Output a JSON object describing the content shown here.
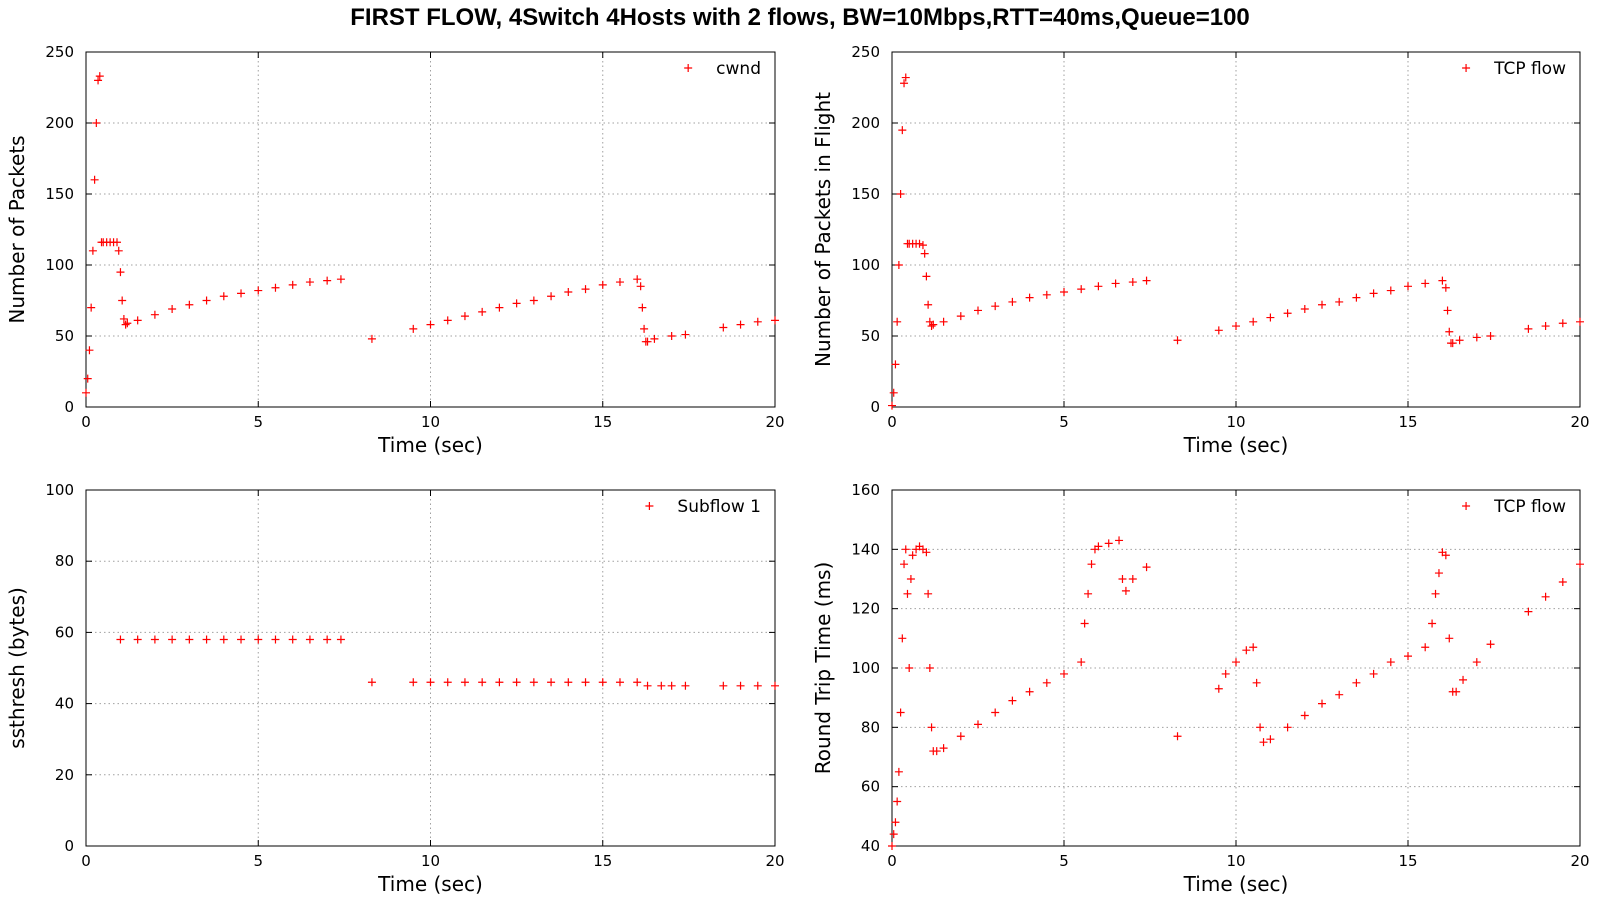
{
  "title": "FIRST FLOW, 4Switch 4Hosts with 2 flows, BW=10Mbps,RTT=40ms,Queue=100",
  "colors": {
    "series": "#ff0000",
    "grid": "#a0a0a0",
    "axis": "#000000"
  },
  "chart_data": [
    {
      "type": "scatter",
      "xlabel": "Time (sec)",
      "ylabel": "Number of Packets",
      "xlim": [
        0,
        20
      ],
      "ylim": [
        0,
        250
      ],
      "xticks": [
        0,
        5,
        10,
        15,
        20
      ],
      "yticks": [
        0,
        50,
        100,
        150,
        200,
        250
      ],
      "grid": true,
      "legend_position": "top-right",
      "series": [
        {
          "name": "cwnd",
          "marker": "+",
          "x": [
            0.0,
            0.05,
            0.1,
            0.15,
            0.2,
            0.25,
            0.3,
            0.35,
            0.4,
            0.45,
            0.5,
            0.6,
            0.7,
            0.8,
            0.9,
            0.95,
            1.0,
            1.05,
            1.1,
            1.15,
            1.2,
            1.5,
            2.0,
            2.5,
            3.0,
            3.5,
            4.0,
            4.5,
            5.0,
            5.5,
            6.0,
            6.5,
            7.0,
            7.4,
            8.3,
            9.5,
            10.0,
            10.5,
            11.0,
            11.5,
            12.0,
            12.5,
            13.0,
            13.5,
            14.0,
            14.5,
            15.0,
            15.5,
            16.0,
            16.1,
            16.15,
            16.2,
            16.25,
            16.3,
            16.5,
            17.0,
            17.4,
            18.5,
            19.0,
            19.5,
            20.0
          ],
          "y": [
            10,
            20,
            40,
            70,
            110,
            160,
            200,
            230,
            233,
            116,
            116,
            116,
            116,
            116,
            116,
            110,
            95,
            75,
            62,
            58,
            59,
            61,
            65,
            69,
            72,
            75,
            78,
            80,
            82,
            84,
            86,
            88,
            89,
            90,
            48,
            55,
            58,
            61,
            64,
            67,
            70,
            73,
            75,
            78,
            81,
            83,
            86,
            88,
            90,
            85,
            70,
            55,
            46,
            46,
            48,
            50,
            51,
            56,
            58,
            60,
            61
          ]
        }
      ]
    },
    {
      "type": "scatter",
      "xlabel": "Time (sec)",
      "ylabel": "Number of Packets in Flight",
      "xlim": [
        0,
        20
      ],
      "ylim": [
        0,
        250
      ],
      "xticks": [
        0,
        5,
        10,
        15,
        20
      ],
      "yticks": [
        0,
        50,
        100,
        150,
        200,
        250
      ],
      "grid": true,
      "legend_position": "top-right",
      "series": [
        {
          "name": "TCP flow",
          "marker": "+",
          "x": [
            0.0,
            0.05,
            0.1,
            0.15,
            0.2,
            0.25,
            0.3,
            0.35,
            0.4,
            0.45,
            0.5,
            0.6,
            0.7,
            0.8,
            0.9,
            0.95,
            1.0,
            1.05,
            1.1,
            1.15,
            1.2,
            1.5,
            2.0,
            2.5,
            3.0,
            3.5,
            4.0,
            4.5,
            5.0,
            5.5,
            6.0,
            6.5,
            7.0,
            7.4,
            8.3,
            9.5,
            10.0,
            10.5,
            11.0,
            11.5,
            12.0,
            12.5,
            13.0,
            13.5,
            14.0,
            14.5,
            15.0,
            15.5,
            16.0,
            16.1,
            16.15,
            16.2,
            16.25,
            16.3,
            16.5,
            17.0,
            17.4,
            18.5,
            19.0,
            19.5,
            20.0
          ],
          "y": [
            1,
            10,
            30,
            60,
            100,
            150,
            195,
            228,
            232,
            115,
            115,
            115,
            115,
            115,
            114,
            108,
            92,
            72,
            60,
            57,
            58,
            60,
            64,
            68,
            71,
            74,
            77,
            79,
            81,
            83,
            85,
            87,
            88,
            89,
            47,
            54,
            57,
            60,
            63,
            66,
            69,
            72,
            74,
            77,
            80,
            82,
            85,
            87,
            89,
            84,
            68,
            53,
            45,
            45,
            47,
            49,
            50,
            55,
            57,
            59,
            60
          ]
        }
      ]
    },
    {
      "type": "scatter",
      "xlabel": "Time (sec)",
      "ylabel": "ssthresh (bytes)",
      "xlim": [
        0,
        20
      ],
      "ylim": [
        0,
        100
      ],
      "xticks": [
        0,
        5,
        10,
        15,
        20
      ],
      "yticks": [
        0,
        20,
        40,
        60,
        80,
        100
      ],
      "grid": true,
      "legend_position": "top-right",
      "series": [
        {
          "name": "Subflow 1",
          "marker": "+",
          "x": [
            1.0,
            1.5,
            2.0,
            2.5,
            3.0,
            3.5,
            4.0,
            4.5,
            5.0,
            5.5,
            6.0,
            6.5,
            7.0,
            7.4,
            8.3,
            9.5,
            10.0,
            10.5,
            11.0,
            11.5,
            12.0,
            12.5,
            13.0,
            13.5,
            14.0,
            14.5,
            15.0,
            15.5,
            16.0,
            16.3,
            16.7,
            17.0,
            17.4,
            18.5,
            19.0,
            19.5,
            20.0
          ],
          "y": [
            58,
            58,
            58,
            58,
            58,
            58,
            58,
            58,
            58,
            58,
            58,
            58,
            58,
            58,
            46,
            46,
            46,
            46,
            46,
            46,
            46,
            46,
            46,
            46,
            46,
            46,
            46,
            46,
            46,
            45,
            45,
            45,
            45,
            45,
            45,
            45,
            45
          ]
        }
      ]
    },
    {
      "type": "scatter",
      "xlabel": "Time (sec)",
      "ylabel": "Round Trip Time (ms)",
      "xlim": [
        0,
        20
      ],
      "ylim": [
        40,
        160
      ],
      "xticks": [
        0,
        5,
        10,
        15,
        20
      ],
      "yticks": [
        40,
        60,
        80,
        100,
        120,
        140,
        160
      ],
      "grid": true,
      "legend_position": "top-right",
      "series": [
        {
          "name": "TCP flow",
          "marker": "+",
          "x": [
            0.0,
            0.05,
            0.1,
            0.15,
            0.2,
            0.25,
            0.3,
            0.35,
            0.4,
            0.45,
            0.5,
            0.55,
            0.6,
            0.7,
            0.8,
            0.9,
            1.0,
            1.05,
            1.1,
            1.15,
            1.2,
            1.3,
            1.5,
            2.0,
            2.5,
            3.0,
            3.5,
            4.0,
            4.5,
            5.0,
            5.5,
            5.6,
            5.7,
            5.8,
            5.9,
            6.0,
            6.3,
            6.6,
            6.7,
            6.8,
            7.0,
            7.4,
            8.3,
            9.5,
            9.7,
            10.0,
            10.3,
            10.5,
            10.6,
            10.7,
            10.8,
            11.0,
            11.5,
            12.0,
            12.5,
            13.0,
            13.5,
            14.0,
            14.5,
            15.0,
            15.5,
            15.7,
            15.8,
            15.9,
            16.0,
            16.1,
            16.2,
            16.3,
            16.4,
            16.6,
            17.0,
            17.4,
            18.5,
            19.0,
            19.5,
            20.0
          ],
          "y": [
            40,
            44,
            48,
            55,
            65,
            85,
            110,
            135,
            140,
            125,
            100,
            130,
            138,
            140,
            141,
            140,
            139,
            125,
            100,
            80,
            72,
            72,
            73,
            77,
            81,
            85,
            89,
            92,
            95,
            98,
            102,
            115,
            125,
            135,
            140,
            141,
            142,
            143,
            130,
            126,
            130,
            134,
            77,
            93,
            98,
            102,
            106,
            107,
            95,
            80,
            75,
            76,
            80,
            84,
            88,
            91,
            95,
            98,
            102,
            104,
            107,
            115,
            125,
            132,
            139,
            138,
            110,
            92,
            92,
            96,
            102,
            108,
            119,
            124,
            129,
            135
          ]
        }
      ]
    }
  ]
}
